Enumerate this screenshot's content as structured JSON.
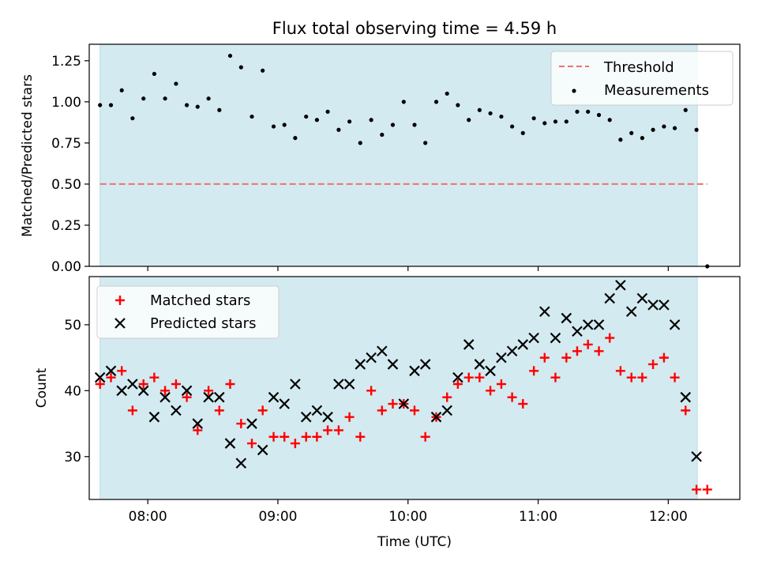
{
  "chart_data": {
    "type": "scatter",
    "title": "Flux total observing time = 4.59 h",
    "xlabel": "Time (UTC)",
    "x_unit": "hours UTC",
    "xlim": [
      7.55,
      12.55
    ],
    "x_ticks": [
      {
        "value": 8,
        "label": "08:00"
      },
      {
        "value": 9,
        "label": "09:00"
      },
      {
        "value": 10,
        "label": "10:00"
      },
      {
        "value": 11,
        "label": "11:00"
      },
      {
        "value": 12,
        "label": "12:00"
      }
    ],
    "shaded_span": {
      "x_start": 7.633,
      "x_end": 12.223,
      "color": "#d3eaf0"
    },
    "panels": [
      {
        "name": "ratio",
        "ylabel": "Matched/Predicted stars",
        "ylim": [
          0,
          1.35
        ],
        "y_ticks": [
          "0.00",
          "0.25",
          "0.50",
          "0.75",
          "1.00",
          "1.25"
        ],
        "threshold": {
          "name": "Threshold",
          "y": 0.5,
          "x_start": 7.633,
          "x_end": 12.3,
          "color": "#f07070"
        },
        "legend": {
          "position": "top-right",
          "entries": [
            "Threshold",
            "Measurements"
          ]
        },
        "series": [
          {
            "name": "Measurements",
            "marker": "dot",
            "color": "#000000",
            "x": [
              7.633,
              7.717,
              7.8,
              7.883,
              7.967,
              8.05,
              8.133,
              8.217,
              8.3,
              8.383,
              8.467,
              8.55,
              8.633,
              8.717,
              8.8,
              8.883,
              8.967,
              9.05,
              9.133,
              9.217,
              9.3,
              9.383,
              9.467,
              9.55,
              9.633,
              9.717,
              9.8,
              9.883,
              9.967,
              10.05,
              10.133,
              10.217,
              10.3,
              10.383,
              10.467,
              10.55,
              10.633,
              10.717,
              10.8,
              10.883,
              10.967,
              11.05,
              11.133,
              11.217,
              11.3,
              11.383,
              11.467,
              11.55,
              11.633,
              11.717,
              11.8,
              11.883,
              11.967,
              12.05,
              12.133,
              12.217,
              12.3
            ],
            "y": [
              0.98,
              0.98,
              1.07,
              0.9,
              1.02,
              1.17,
              1.02,
              1.11,
              0.98,
              0.97,
              1.02,
              0.95,
              1.28,
              1.21,
              0.91,
              1.19,
              0.85,
              0.86,
              0.78,
              0.91,
              0.89,
              0.94,
              0.83,
              0.88,
              0.75,
              0.89,
              0.8,
              0.86,
              1.0,
              0.86,
              0.75,
              1.0,
              1.05,
              0.98,
              0.89,
              0.95,
              0.93,
              0.91,
              0.85,
              0.81,
              0.9,
              0.87,
              0.88,
              0.88,
              0.94,
              0.94,
              0.92,
              0.89,
              0.77,
              0.81,
              0.78,
              0.83,
              0.85,
              0.84,
              0.95,
              0.83,
              0.0
            ]
          }
        ]
      },
      {
        "name": "count",
        "ylabel": "Count",
        "ylim": [
          23.5,
          57.3
        ],
        "y_ticks": [
          "30",
          "40",
          "50"
        ],
        "legend": {
          "position": "top-left",
          "entries": [
            "Matched stars",
            "Predicted stars"
          ]
        },
        "series": [
          {
            "name": "Matched stars",
            "marker": "plus",
            "color": "#ff0000",
            "x": [
              7.633,
              7.717,
              7.8,
              7.883,
              7.967,
              8.05,
              8.133,
              8.217,
              8.3,
              8.383,
              8.467,
              8.55,
              8.633,
              8.717,
              8.8,
              8.883,
              8.967,
              9.05,
              9.133,
              9.217,
              9.3,
              9.383,
              9.467,
              9.55,
              9.633,
              9.717,
              9.8,
              9.883,
              9.967,
              10.05,
              10.133,
              10.217,
              10.3,
              10.383,
              10.467,
              10.55,
              10.633,
              10.717,
              10.8,
              10.883,
              10.967,
              11.05,
              11.133,
              11.217,
              11.3,
              11.383,
              11.467,
              11.55,
              11.633,
              11.717,
              11.8,
              11.883,
              11.967,
              12.05,
              12.133,
              12.217,
              12.3
            ],
            "y": [
              41,
              42,
              43,
              37,
              41,
              42,
              40,
              41,
              39,
              34,
              40,
              37,
              41,
              35,
              32,
              37,
              33,
              33,
              32,
              33,
              33,
              34,
              34,
              36,
              33,
              40,
              37,
              38,
              38,
              37,
              33,
              36,
              39,
              41,
              42,
              42,
              40,
              41,
              39,
              38,
              43,
              45,
              42,
              45,
              46,
              47,
              46,
              48,
              43,
              42,
              42,
              44,
              45,
              42,
              37,
              25,
              25
            ]
          },
          {
            "name": "Predicted stars",
            "marker": "x",
            "color": "#000000",
            "x": [
              7.633,
              7.717,
              7.8,
              7.883,
              7.967,
              8.05,
              8.133,
              8.217,
              8.3,
              8.383,
              8.467,
              8.55,
              8.633,
              8.717,
              8.8,
              8.883,
              8.967,
              9.05,
              9.133,
              9.217,
              9.3,
              9.383,
              9.467,
              9.55,
              9.633,
              9.717,
              9.8,
              9.883,
              9.967,
              10.05,
              10.133,
              10.217,
              10.3,
              10.383,
              10.467,
              10.55,
              10.633,
              10.717,
              10.8,
              10.883,
              10.967,
              11.05,
              11.133,
              11.217,
              11.3,
              11.383,
              11.467,
              11.55,
              11.633,
              11.717,
              11.8,
              11.883,
              11.967,
              12.05,
              12.133,
              12.217
            ],
            "y": [
              42,
              43,
              40,
              41,
              40,
              36,
              39,
              37,
              40,
              35,
              39,
              39,
              32,
              29,
              35,
              31,
              39,
              38,
              41,
              36,
              37,
              36,
              41,
              41,
              44,
              45,
              46,
              44,
              38,
              43,
              44,
              36,
              37,
              42,
              47,
              44,
              43,
              45,
              46,
              47,
              48,
              52,
              48,
              51,
              49,
              50,
              50,
              54,
              56,
              52,
              54,
              53,
              53,
              50,
              39,
              30
            ]
          }
        ]
      }
    ]
  }
}
